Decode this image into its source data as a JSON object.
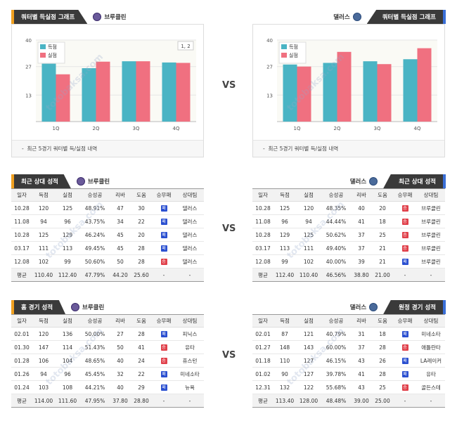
{
  "vs_label": "VS",
  "teams": {
    "brooklyn": "브루클린",
    "dallas": "댈러스"
  },
  "sections": {
    "quarter_title": "쿼터별 득실점 그래프",
    "recent_title": "최근 상대 성적",
    "home_title": "홈 경기 성적",
    "away_title": "원정 경기 성적",
    "chart_note": "최근 5경기 쿼터별 득/실점 내역"
  },
  "legend": {
    "scored": "득점",
    "allowed": "실점"
  },
  "colors": {
    "scored": "#4ab4c4",
    "allowed": "#f07080",
    "win": "#e0404a",
    "loss": "#2a4fd0",
    "accent_left": "#f0a020",
    "accent_right": "#3a6fd8"
  },
  "chart_data": [
    {
      "type": "bar",
      "categories": [
        "1Q",
        "2Q",
        "3Q",
        "4Q"
      ],
      "series": [
        {
          "name": "득점",
          "values": [
            28.4,
            26.2,
            29.6,
            29.0
          ]
        },
        {
          "name": "실점",
          "values": [
            23.2,
            29.4,
            29.6,
            28.8
          ]
        }
      ],
      "ylim": [
        0,
        40
      ],
      "yticks": [
        13,
        27,
        40
      ],
      "annotation": "1, 2"
    },
    {
      "type": "bar",
      "categories": [
        "1Q",
        "2Q",
        "3Q",
        "4Q"
      ],
      "series": [
        {
          "name": "득점",
          "values": [
            28.0,
            28.8,
            29.6,
            30.6
          ]
        },
        {
          "name": "실점",
          "values": [
            27.0,
            34.2,
            28.2,
            36.0
          ]
        }
      ],
      "ylim": [
        0,
        40
      ],
      "yticks": [
        13,
        27,
        40
      ]
    }
  ],
  "columns": [
    "일자",
    "득점",
    "실점",
    "승성공",
    "리바",
    "도움",
    "승무패",
    "상대팀"
  ],
  "avg_label": "평균",
  "recent_left": {
    "rows": [
      [
        "10.28",
        "120",
        "125",
        "48.91%",
        "47",
        "30",
        "패",
        "댈러스"
      ],
      [
        "11.08",
        "94",
        "96",
        "43.75%",
        "34",
        "22",
        "패",
        "댈러스"
      ],
      [
        "10.28",
        "125",
        "129",
        "46.24%",
        "45",
        "20",
        "패",
        "댈러스"
      ],
      [
        "03.17",
        "111",
        "113",
        "49.45%",
        "45",
        "28",
        "패",
        "댈러스"
      ],
      [
        "12.08",
        "102",
        "99",
        "50.60%",
        "50",
        "28",
        "승",
        "댈러스"
      ]
    ],
    "avg": [
      "평균",
      "110.40",
      "112.40",
      "47.79%",
      "44.20",
      "25.60",
      "-",
      "-"
    ]
  },
  "recent_right": {
    "rows": [
      [
        "10.28",
        "125",
        "120",
        "48.35%",
        "40",
        "20",
        "승",
        "브루클린"
      ],
      [
        "11.08",
        "96",
        "94",
        "44.44%",
        "41",
        "18",
        "승",
        "브루클린"
      ],
      [
        "10.28",
        "129",
        "125",
        "50.62%",
        "37",
        "25",
        "승",
        "브루클린"
      ],
      [
        "03.17",
        "113",
        "111",
        "49.40%",
        "37",
        "21",
        "승",
        "브루클린"
      ],
      [
        "12.08",
        "99",
        "102",
        "40.00%",
        "39",
        "21",
        "패",
        "브루클린"
      ]
    ],
    "avg": [
      "평균",
      "112.40",
      "110.40",
      "46.56%",
      "38.80",
      "21.00",
      "-",
      "-"
    ]
  },
  "home_left": {
    "rows": [
      [
        "02.01",
        "120",
        "136",
        "50.00%",
        "27",
        "28",
        "패",
        "피닉스"
      ],
      [
        "01.30",
        "147",
        "114",
        "51.43%",
        "50",
        "41",
        "승",
        "유타"
      ],
      [
        "01.28",
        "106",
        "104",
        "48.65%",
        "40",
        "24",
        "승",
        "휴스턴"
      ],
      [
        "01.26",
        "94",
        "96",
        "45.45%",
        "32",
        "22",
        "패",
        "미네소타"
      ],
      [
        "01.24",
        "103",
        "108",
        "44.21%",
        "40",
        "29",
        "패",
        "뉴욕"
      ]
    ],
    "avg": [
      "평균",
      "114.00",
      "111.60",
      "47.95%",
      "37.80",
      "28.80",
      "-",
      "-"
    ]
  },
  "away_right": {
    "rows": [
      [
        "02.01",
        "87",
        "121",
        "40.79%",
        "31",
        "18",
        "패",
        "미네소타"
      ],
      [
        "01.27",
        "148",
        "143",
        "60.00%",
        "37",
        "28",
        "승",
        "애틀란타"
      ],
      [
        "01.18",
        "110",
        "127",
        "46.15%",
        "43",
        "26",
        "패",
        "LA레이커"
      ],
      [
        "01.02",
        "90",
        "127",
        "39.78%",
        "41",
        "28",
        "패",
        "유타"
      ],
      [
        "12.31",
        "132",
        "122",
        "55.68%",
        "43",
        "25",
        "승",
        "골든스테"
      ]
    ],
    "avg": [
      "평균",
      "113.40",
      "128.00",
      "48.48%",
      "39.00",
      "25.00",
      "-",
      "-"
    ]
  }
}
